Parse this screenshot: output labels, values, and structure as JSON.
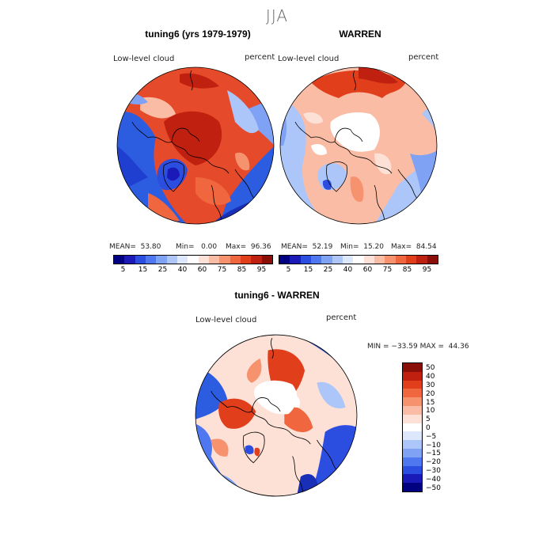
{
  "figure": {
    "season": "JJA",
    "panel_left": {
      "title": "tuning6 (yrs 1979-1979)",
      "variable": "Low-level cloud",
      "units": "percent",
      "mean": "MEAN=  53.80",
      "min": "Min=   0.00",
      "max": "Max=  96.36"
    },
    "panel_right": {
      "title": "WARREN",
      "variable": "Low-level cloud",
      "units": "percent",
      "mean": "MEAN=  52.19",
      "min": "Min=  15.20",
      "max": "Max=  84.54"
    },
    "panel_diff": {
      "title": "tuning6 - WARREN",
      "variable": "Low-level cloud",
      "units": "percent",
      "minmax": "MIN = −33.59 MAX =  44.36"
    },
    "abs_colorbar": {
      "colors": [
        "#000080",
        "#1a1ab8",
        "#2c4ee0",
        "#4f77f0",
        "#7fa2f5",
        "#adc6fa",
        "#dde8fd",
        "#ffffff",
        "#fde0d6",
        "#fbbca5",
        "#f7926f",
        "#f0663f",
        "#e13e1c",
        "#c02010",
        "#8a0f08"
      ],
      "tick_labels": [
        "5",
        "15",
        "25",
        "40",
        "60",
        "75",
        "85",
        "95"
      ]
    },
    "diff_colorbar": {
      "colors": [
        "#8a0f08",
        "#c02010",
        "#e13e1c",
        "#f0663f",
        "#f7926f",
        "#fbbca5",
        "#fde0d6",
        "#ffffff",
        "#dde8fd",
        "#adc6fa",
        "#7fa2f5",
        "#4f77f0",
        "#2c4ee0",
        "#1a1ab8",
        "#000080"
      ],
      "tick_labels": [
        "50",
        "40",
        "30",
        "20",
        "15",
        "10",
        "5",
        "0",
        "−5",
        "−10",
        "−15",
        "−20",
        "−30",
        "−40",
        "−50"
      ]
    }
  }
}
